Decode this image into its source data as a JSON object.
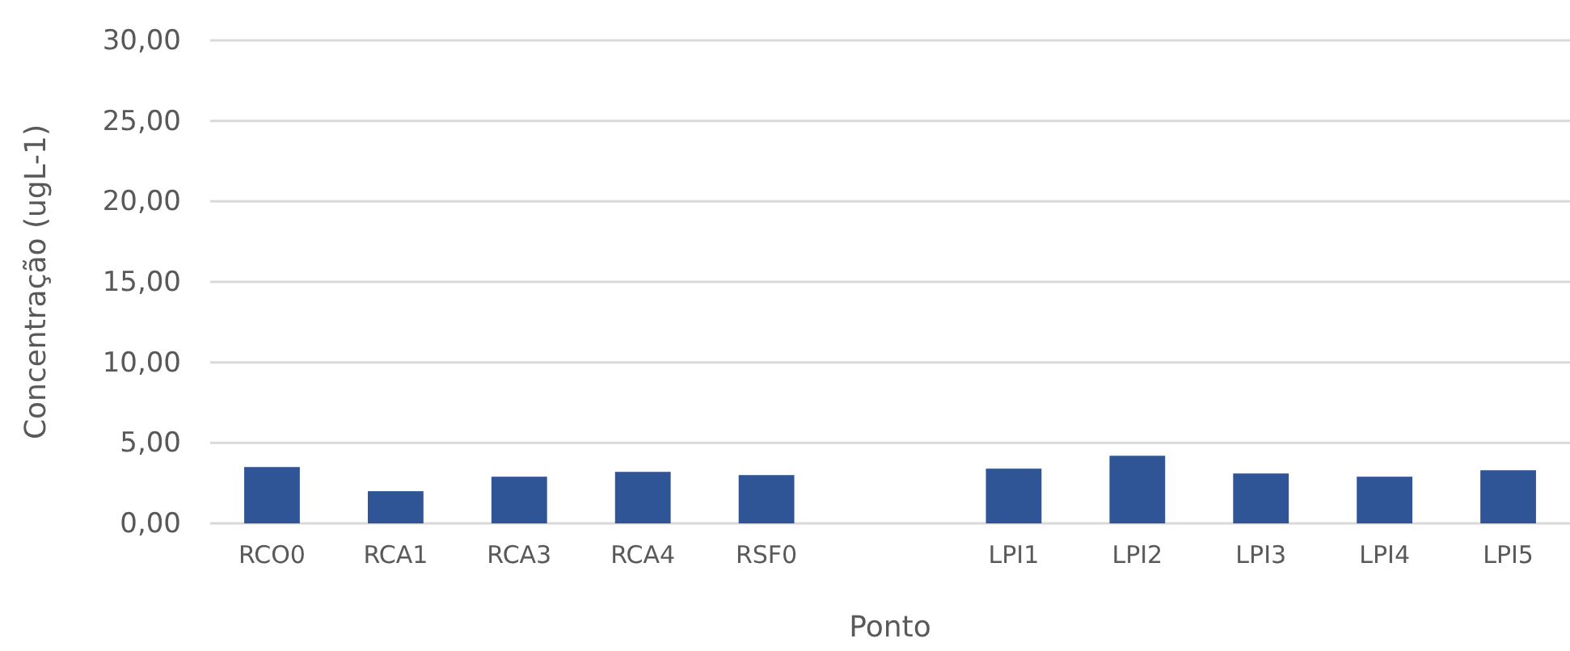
{
  "chart_data": {
    "type": "bar",
    "xlabel": "Ponto",
    "ylabel": "Concentração (ugL-1)",
    "categories": [
      "RCO0",
      "RCA1",
      "RCA3",
      "RCA4",
      "RSF0",
      null,
      "LPI1",
      "LPI2",
      "LPI3",
      "LPI4",
      "LPI5"
    ],
    "values": [
      3.5,
      2.0,
      2.9,
      3.2,
      3.0,
      null,
      3.4,
      4.2,
      3.1,
      2.9,
      3.3
    ],
    "color": "#2f5597",
    "ylim": [
      0,
      30
    ],
    "yticks": [
      {
        "value": 0,
        "label": "0,00"
      },
      {
        "value": 5,
        "label": "5,00"
      },
      {
        "value": 10,
        "label": "10,00"
      },
      {
        "value": 15,
        "label": "15,00"
      },
      {
        "value": 20,
        "label": "20,00"
      },
      {
        "value": 25,
        "label": "25,00"
      },
      {
        "value": 30,
        "label": "30,00"
      }
    ],
    "grid": "y"
  }
}
